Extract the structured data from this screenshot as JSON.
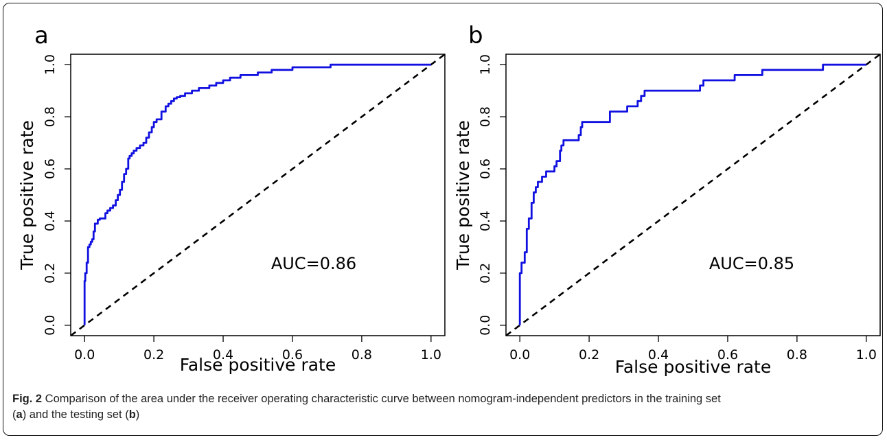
{
  "caption": {
    "fig_label": "Fig. 2",
    "text_main": " Comparison of the area under the receiver operating characteristic curve between nomogram-independent predictors in the training set",
    "paren_open_a": "(",
    "panel_a": "a",
    "text_mid": ") and the testing set (",
    "panel_b": "b",
    "paren_close": ")"
  },
  "chart_data": [
    {
      "type": "line",
      "panel_label": "a",
      "xlabel": "False positive rate",
      "ylabel": "True positive rate",
      "xlim": [
        -0.04,
        1.04
      ],
      "ylim": [
        -0.04,
        1.04
      ],
      "xticks": [
        "0.0",
        "0.2",
        "0.4",
        "0.6",
        "0.8",
        "1.0"
      ],
      "yticks": [
        "0.0",
        "0.2",
        "0.4",
        "0.6",
        "0.8",
        "1.0"
      ],
      "annotation": "AUC=0.86",
      "series": [
        {
          "color": "#1010e0",
          "x": [
            0,
            0,
            0.002,
            0.002,
            0.006,
            0.006,
            0.01,
            0.01,
            0.014,
            0.014,
            0.018,
            0.018,
            0.022,
            0.022,
            0.026,
            0.026,
            0.03,
            0.03,
            0.038,
            0.038,
            0.044,
            0.044,
            0.06,
            0.06,
            0.066,
            0.066,
            0.074,
            0.074,
            0.082,
            0.082,
            0.09,
            0.09,
            0.096,
            0.096,
            0.102,
            0.102,
            0.108,
            0.108,
            0.114,
            0.114,
            0.12,
            0.12,
            0.126,
            0.126,
            0.13,
            0.13,
            0.136,
            0.136,
            0.142,
            0.142,
            0.15,
            0.15,
            0.16,
            0.16,
            0.17,
            0.17,
            0.178,
            0.178,
            0.186,
            0.186,
            0.194,
            0.194,
            0.2,
            0.2,
            0.208,
            0.208,
            0.222,
            0.222,
            0.234,
            0.234,
            0.242,
            0.242,
            0.25,
            0.25,
            0.258,
            0.258,
            0.266,
            0.266,
            0.276,
            0.276,
            0.29,
            0.29,
            0.31,
            0.31,
            0.33,
            0.33,
            0.36,
            0.36,
            0.38,
            0.38,
            0.4,
            0.4,
            0.42,
            0.42,
            0.45,
            0.45,
            0.5,
            0.5,
            0.54,
            0.54,
            0.6,
            0.6,
            0.71,
            0.71,
            1.0
          ],
          "y": [
            0,
            0.17,
            0.17,
            0.2,
            0.2,
            0.24,
            0.24,
            0.3,
            0.3,
            0.31,
            0.31,
            0.32,
            0.32,
            0.33,
            0.33,
            0.36,
            0.36,
            0.39,
            0.39,
            0.405,
            0.405,
            0.41,
            0.41,
            0.43,
            0.43,
            0.44,
            0.44,
            0.45,
            0.45,
            0.46,
            0.46,
            0.48,
            0.48,
            0.5,
            0.5,
            0.52,
            0.52,
            0.55,
            0.55,
            0.58,
            0.58,
            0.6,
            0.6,
            0.64,
            0.64,
            0.65,
            0.65,
            0.66,
            0.66,
            0.67,
            0.67,
            0.68,
            0.68,
            0.69,
            0.69,
            0.7,
            0.7,
            0.72,
            0.72,
            0.74,
            0.74,
            0.76,
            0.76,
            0.78,
            0.78,
            0.79,
            0.79,
            0.82,
            0.82,
            0.84,
            0.84,
            0.85,
            0.85,
            0.86,
            0.86,
            0.87,
            0.87,
            0.875,
            0.875,
            0.88,
            0.88,
            0.89,
            0.89,
            0.9,
            0.9,
            0.91,
            0.91,
            0.92,
            0.92,
            0.93,
            0.93,
            0.94,
            0.94,
            0.95,
            0.95,
            0.96,
            0.96,
            0.97,
            0.97,
            0.98,
            0.98,
            0.99,
            0.99,
            1.0,
            1.0
          ]
        }
      ],
      "reference_line": {
        "x": [
          0,
          1
        ],
        "y": [
          0,
          1
        ],
        "style": "dashed"
      }
    },
    {
      "type": "line",
      "panel_label": "b",
      "xlabel": "False positive rate",
      "ylabel": "True positive rate",
      "xlim": [
        -0.04,
        1.04
      ],
      "ylim": [
        -0.04,
        1.04
      ],
      "xticks": [
        "0.0",
        "0.2",
        "0.4",
        "0.6",
        "0.8",
        "1.0"
      ],
      "yticks": [
        "0.0",
        "0.2",
        "0.4",
        "0.6",
        "0.8",
        "1.0"
      ],
      "annotation": "AUC=0.85",
      "series": [
        {
          "color": "#1010e0",
          "x": [
            0,
            0,
            0.005,
            0.005,
            0.014,
            0.014,
            0.02,
            0.02,
            0.026,
            0.026,
            0.034,
            0.034,
            0.04,
            0.04,
            0.046,
            0.046,
            0.052,
            0.052,
            0.064,
            0.064,
            0.076,
            0.076,
            0.1,
            0.1,
            0.106,
            0.106,
            0.116,
            0.116,
            0.12,
            0.12,
            0.126,
            0.126,
            0.17,
            0.17,
            0.176,
            0.176,
            0.18,
            0.18,
            0.26,
            0.26,
            0.31,
            0.31,
            0.34,
            0.34,
            0.35,
            0.35,
            0.36,
            0.36,
            0.52,
            0.52,
            0.53,
            0.53,
            0.62,
            0.62,
            0.7,
            0.7,
            0.875,
            0.875,
            1.0
          ],
          "y": [
            0,
            0.2,
            0.2,
            0.24,
            0.24,
            0.28,
            0.28,
            0.37,
            0.37,
            0.41,
            0.41,
            0.47,
            0.47,
            0.51,
            0.51,
            0.53,
            0.53,
            0.55,
            0.55,
            0.57,
            0.57,
            0.59,
            0.59,
            0.61,
            0.61,
            0.63,
            0.63,
            0.67,
            0.67,
            0.69,
            0.69,
            0.71,
            0.71,
            0.73,
            0.73,
            0.76,
            0.76,
            0.78,
            0.78,
            0.82,
            0.82,
            0.84,
            0.84,
            0.86,
            0.86,
            0.88,
            0.88,
            0.9,
            0.9,
            0.92,
            0.92,
            0.94,
            0.94,
            0.96,
            0.96,
            0.98,
            0.98,
            1.0,
            1.0
          ]
        }
      ],
      "reference_line": {
        "x": [
          0,
          1
        ],
        "y": [
          0,
          1
        ],
        "style": "dashed"
      }
    }
  ]
}
